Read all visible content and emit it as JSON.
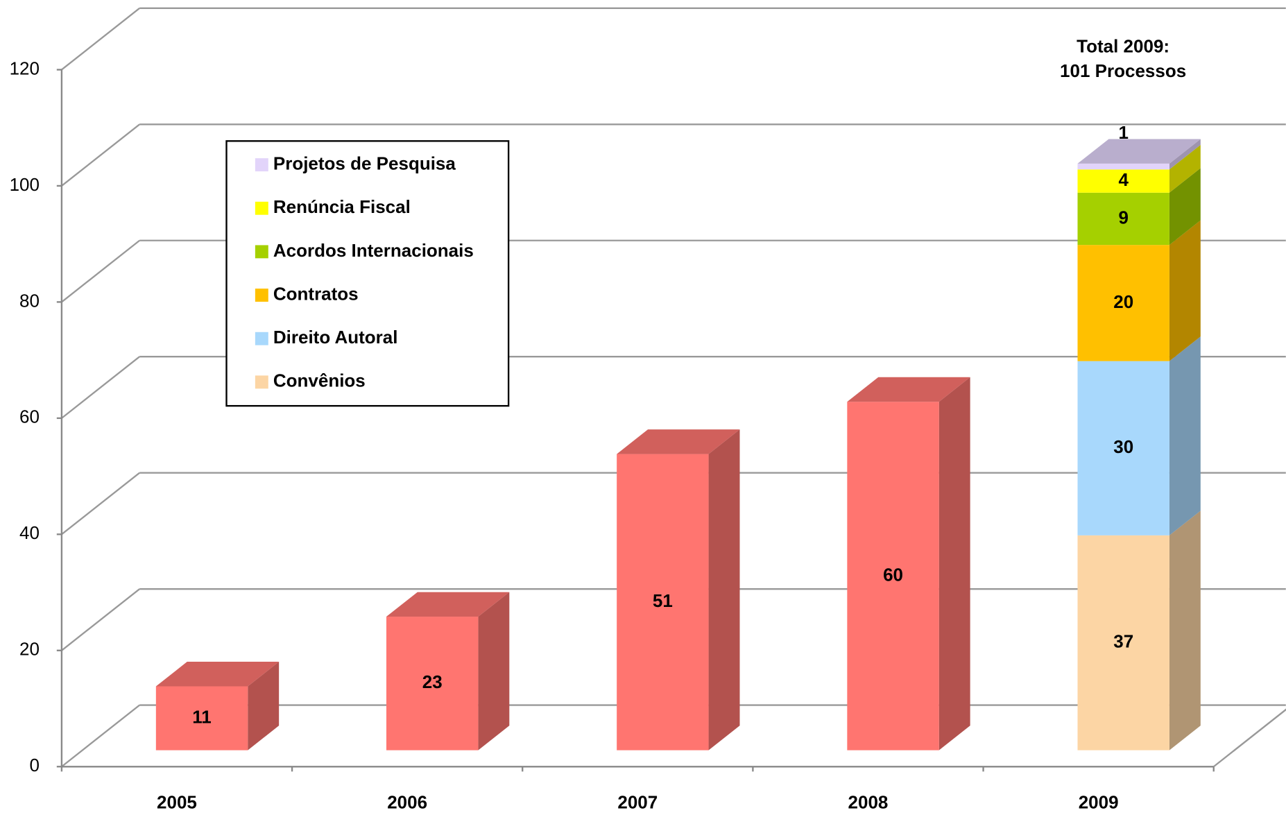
{
  "chart_data": {
    "type": "bar3d_stacked",
    "categories": [
      "2005",
      "2006",
      "2007",
      "2008",
      "2009"
    ],
    "series": [
      {
        "color": "#ff7570",
        "values": [
          11,
          23,
          51,
          60,
          null
        ]
      },
      {
        "name": "Convênios",
        "color": "#fcd5a4",
        "values": [
          null,
          null,
          null,
          null,
          37
        ]
      },
      {
        "name": "Direito Autoral",
        "color": "#a8d8fc",
        "values": [
          null,
          null,
          null,
          null,
          30
        ]
      },
      {
        "name": "Contratos",
        "color": "#ffc000",
        "values": [
          null,
          null,
          null,
          null,
          20
        ]
      },
      {
        "name": "Acordos Internacionais",
        "color": "#a5d000",
        "values": [
          null,
          null,
          null,
          null,
          9
        ]
      },
      {
        "name": "Renúncia Fiscal",
        "color": "#ffff00",
        "values": [
          null,
          null,
          null,
          null,
          4
        ]
      },
      {
        "name": "Projetos de Pesquisa",
        "color": "#e2d4fa",
        "values": [
          null,
          null,
          null,
          null,
          1
        ]
      }
    ],
    "annotation": [
      "Total 2009:",
      "101 Processos"
    ],
    "ylim": [
      0,
      120
    ],
    "yticks": [
      0,
      20,
      40,
      60,
      80,
      100,
      120
    ],
    "grid": true,
    "legend": "upper left"
  }
}
